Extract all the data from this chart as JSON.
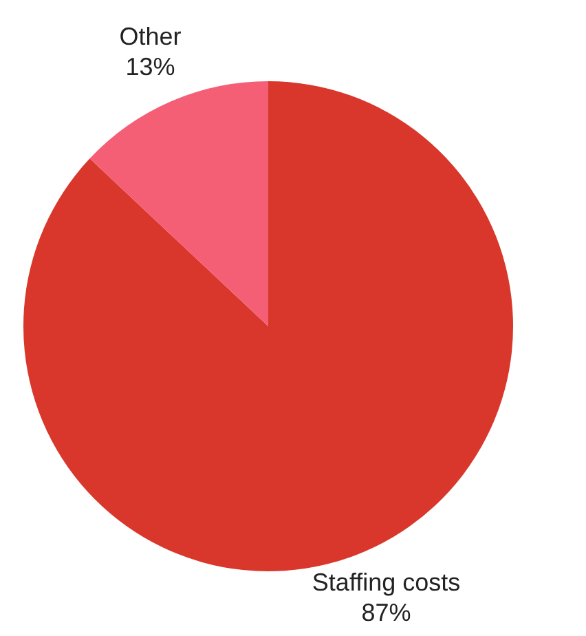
{
  "chart_data": {
    "type": "pie",
    "categories": [
      "Staffing costs",
      "Other"
    ],
    "values": [
      87,
      13
    ],
    "colors": [
      "#d9372b",
      "#f45f76"
    ],
    "value_labels": [
      "87%",
      "13%"
    ],
    "legend": false
  }
}
